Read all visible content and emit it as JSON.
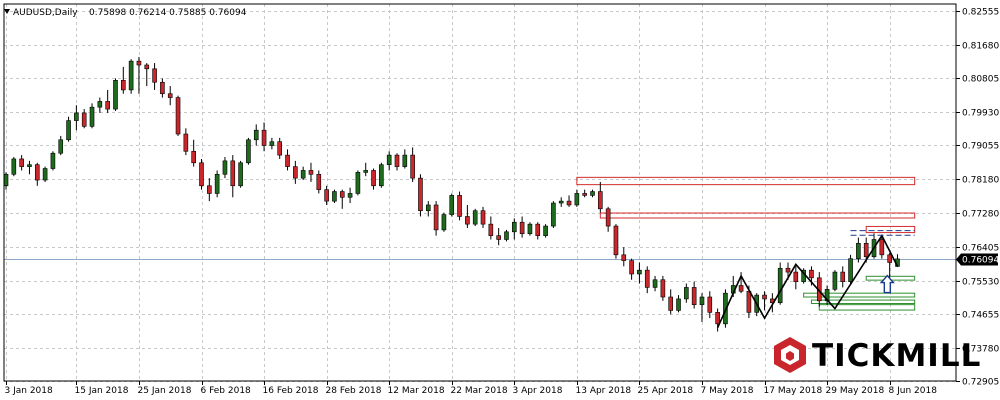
{
  "header": {
    "symbol": "AUDUSD,Daily",
    "ohlc": "0.75898 0.76214 0.75885 0.76094"
  },
  "logo": {
    "text": "TICKMILL",
    "mark_color": "#c8262c"
  },
  "price_marker": {
    "value": "0.76094"
  },
  "colors": {
    "bull": "#1e6b1e",
    "bear": "#c8282c",
    "grid": "#c8c8c8",
    "zone_red": "#d42b2b",
    "zone_green": "#2f8f2f",
    "pattern_blue": "#1a3a8c",
    "price_line": "#8fa8c8"
  },
  "chart_data": {
    "type": "candlestick",
    "y_axis": {
      "min": 0.7291,
      "max": 0.8274,
      "position": "right"
    },
    "y_tick_labels": [
      "0.82555",
      "0.81680",
      "0.80805",
      "0.79930",
      "0.79055",
      "0.78180",
      "0.77280",
      "0.76405",
      "0.75530",
      "0.74655",
      "0.73780",
      "0.72905"
    ],
    "x_tick_labels": [
      "3 Jan 2018",
      "15 Jan 2018",
      "25 Jan 2018",
      "6 Feb 2018",
      "16 Feb 2018",
      "28 Feb 2018",
      "12 Mar 2018",
      "22 Mar 2018",
      "3 Apr 2018",
      "13 Apr 2018",
      "25 Apr 2018",
      "7 May 2018",
      "17 May 2018",
      "29 May 2018",
      "8 Jun 2018"
    ],
    "x_tick_bar_index": [
      0,
      9,
      17,
      25,
      33,
      41,
      49,
      57,
      65,
      73,
      81,
      89,
      97,
      105,
      113
    ],
    "grid": true,
    "candles": [
      [
        0.78,
        0.7835,
        0.779,
        0.783
      ],
      [
        0.783,
        0.7875,
        0.7825,
        0.787
      ],
      [
        0.787,
        0.788,
        0.784,
        0.785
      ],
      [
        0.785,
        0.7865,
        0.783,
        0.7855
      ],
      [
        0.7855,
        0.786,
        0.78,
        0.7815
      ],
      [
        0.7815,
        0.785,
        0.781,
        0.7845
      ],
      [
        0.7845,
        0.789,
        0.784,
        0.7885
      ],
      [
        0.7885,
        0.793,
        0.788,
        0.792
      ],
      [
        0.792,
        0.798,
        0.7915,
        0.797
      ],
      [
        0.797,
        0.801,
        0.7945,
        0.799
      ],
      [
        0.799,
        0.8,
        0.795,
        0.7955
      ],
      [
        0.7955,
        0.8015,
        0.795,
        0.8005
      ],
      [
        0.8005,
        0.803,
        0.799,
        0.802
      ],
      [
        0.802,
        0.805,
        0.799,
        0.8
      ],
      [
        0.8,
        0.808,
        0.7995,
        0.8075
      ],
      [
        0.8075,
        0.811,
        0.804,
        0.805
      ],
      [
        0.805,
        0.813,
        0.804,
        0.8125
      ],
      [
        0.8125,
        0.8136,
        0.804,
        0.8115
      ],
      [
        0.8115,
        0.812,
        0.806,
        0.8105
      ],
      [
        0.8105,
        0.812,
        0.805,
        0.807
      ],
      [
        0.807,
        0.808,
        0.803,
        0.804
      ],
      [
        0.804,
        0.806,
        0.801,
        0.803
      ],
      [
        0.803,
        0.8035,
        0.793,
        0.7935
      ],
      [
        0.7935,
        0.795,
        0.788,
        0.789
      ],
      [
        0.789,
        0.792,
        0.785,
        0.786
      ],
      [
        0.786,
        0.787,
        0.779,
        0.78
      ],
      [
        0.78,
        0.782,
        0.776,
        0.778
      ],
      [
        0.778,
        0.784,
        0.777,
        0.783
      ],
      [
        0.783,
        0.7875,
        0.782,
        0.7865
      ],
      [
        0.7865,
        0.788,
        0.777,
        0.78
      ],
      [
        0.78,
        0.7865,
        0.7795,
        0.786
      ],
      [
        0.786,
        0.7925,
        0.7855,
        0.792
      ],
      [
        0.792,
        0.796,
        0.7905,
        0.7945
      ],
      [
        0.7945,
        0.7965,
        0.789,
        0.7905
      ],
      [
        0.7905,
        0.7925,
        0.7895,
        0.7915
      ],
      [
        0.7915,
        0.7925,
        0.787,
        0.788
      ],
      [
        0.788,
        0.7895,
        0.784,
        0.785
      ],
      [
        0.785,
        0.7865,
        0.7805,
        0.782
      ],
      [
        0.782,
        0.785,
        0.7815,
        0.784
      ],
      [
        0.784,
        0.786,
        0.781,
        0.783
      ],
      [
        0.783,
        0.784,
        0.778,
        0.779
      ],
      [
        0.779,
        0.78,
        0.775,
        0.776
      ],
      [
        0.776,
        0.779,
        0.7755,
        0.7785
      ],
      [
        0.7785,
        0.779,
        0.774,
        0.777
      ],
      [
        0.777,
        0.7795,
        0.7755,
        0.778
      ],
      [
        0.778,
        0.784,
        0.7775,
        0.7835
      ],
      [
        0.7835,
        0.786,
        0.7825,
        0.784
      ],
      [
        0.784,
        0.7845,
        0.779,
        0.78
      ],
      [
        0.78,
        0.786,
        0.7795,
        0.7855
      ],
      [
        0.7855,
        0.789,
        0.784,
        0.788
      ],
      [
        0.788,
        0.7885,
        0.784,
        0.785
      ],
      [
        0.785,
        0.7895,
        0.7845,
        0.788
      ],
      [
        0.788,
        0.79,
        0.781,
        0.782
      ],
      [
        0.782,
        0.783,
        0.772,
        0.7735
      ],
      [
        0.7735,
        0.776,
        0.772,
        0.775
      ],
      [
        0.775,
        0.776,
        0.767,
        0.7685
      ],
      [
        0.7685,
        0.773,
        0.768,
        0.7725
      ],
      [
        0.7725,
        0.778,
        0.772,
        0.7775
      ],
      [
        0.7775,
        0.7785,
        0.771,
        0.772
      ],
      [
        0.772,
        0.775,
        0.769,
        0.77
      ],
      [
        0.77,
        0.774,
        0.7695,
        0.7735
      ],
      [
        0.7735,
        0.7745,
        0.769,
        0.77
      ],
      [
        0.77,
        0.772,
        0.766,
        0.767
      ],
      [
        0.767,
        0.769,
        0.7645,
        0.766
      ],
      [
        0.766,
        0.7685,
        0.7655,
        0.768
      ],
      [
        0.768,
        0.7715,
        0.766,
        0.7705
      ],
      [
        0.7705,
        0.772,
        0.7665,
        0.7675
      ],
      [
        0.7675,
        0.7705,
        0.767,
        0.77
      ],
      [
        0.77,
        0.7705,
        0.766,
        0.767
      ],
      [
        0.767,
        0.77,
        0.7665,
        0.7695
      ],
      [
        0.7695,
        0.776,
        0.769,
        0.7755
      ],
      [
        0.7755,
        0.777,
        0.7745,
        0.776
      ],
      [
        0.776,
        0.7775,
        0.7745,
        0.775
      ],
      [
        0.775,
        0.779,
        0.7745,
        0.778
      ],
      [
        0.778,
        0.779,
        0.777,
        0.7775
      ],
      [
        0.7775,
        0.779,
        0.777,
        0.7785
      ],
      [
        0.7785,
        0.781,
        0.773,
        0.774
      ],
      [
        0.774,
        0.7745,
        0.768,
        0.7695
      ],
      [
        0.7695,
        0.77,
        0.761,
        0.762
      ],
      [
        0.762,
        0.764,
        0.759,
        0.7605
      ],
      [
        0.7605,
        0.761,
        0.7555,
        0.757
      ],
      [
        0.757,
        0.76,
        0.7545,
        0.758
      ],
      [
        0.758,
        0.759,
        0.752,
        0.7535
      ],
      [
        0.7535,
        0.7565,
        0.7525,
        0.7555
      ],
      [
        0.7555,
        0.7565,
        0.75,
        0.751
      ],
      [
        0.751,
        0.753,
        0.7465,
        0.7475
      ],
      [
        0.7475,
        0.7515,
        0.747,
        0.7505
      ],
      [
        0.7505,
        0.7545,
        0.7495,
        0.7535
      ],
      [
        0.7535,
        0.755,
        0.748,
        0.749
      ],
      [
        0.749,
        0.752,
        0.7445,
        0.751
      ],
      [
        0.751,
        0.7525,
        0.7455,
        0.747
      ],
      [
        0.747,
        0.748,
        0.742,
        0.744
      ],
      [
        0.744,
        0.753,
        0.743,
        0.752
      ],
      [
        0.752,
        0.7565,
        0.751,
        0.754
      ],
      [
        0.754,
        0.7575,
        0.752,
        0.7525
      ],
      [
        0.7525,
        0.754,
        0.7455,
        0.747
      ],
      [
        0.747,
        0.752,
        0.746,
        0.7515
      ],
      [
        0.7515,
        0.7525,
        0.7475,
        0.7505
      ],
      [
        0.7505,
        0.752,
        0.747,
        0.7495
      ],
      [
        0.7495,
        0.76,
        0.749,
        0.7585
      ],
      [
        0.7585,
        0.76,
        0.7555,
        0.7575
      ],
      [
        0.7575,
        0.759,
        0.753,
        0.755
      ],
      [
        0.755,
        0.7585,
        0.7545,
        0.758
      ],
      [
        0.758,
        0.759,
        0.754,
        0.756
      ],
      [
        0.756,
        0.7575,
        0.7485,
        0.75
      ],
      [
        0.75,
        0.754,
        0.749,
        0.753
      ],
      [
        0.753,
        0.758,
        0.7525,
        0.7575
      ],
      [
        0.7575,
        0.759,
        0.7535,
        0.755
      ],
      [
        0.755,
        0.762,
        0.7545,
        0.761
      ],
      [
        0.761,
        0.7665,
        0.76,
        0.765
      ],
      [
        0.765,
        0.7665,
        0.76,
        0.7615
      ],
      [
        0.7615,
        0.7676,
        0.761,
        0.766
      ],
      [
        0.766,
        0.767,
        0.761,
        0.762
      ],
      [
        0.762,
        0.7625,
        0.7555,
        0.76
      ],
      [
        0.75898,
        0.76214,
        0.75885,
        0.76094
      ]
    ]
  }
}
